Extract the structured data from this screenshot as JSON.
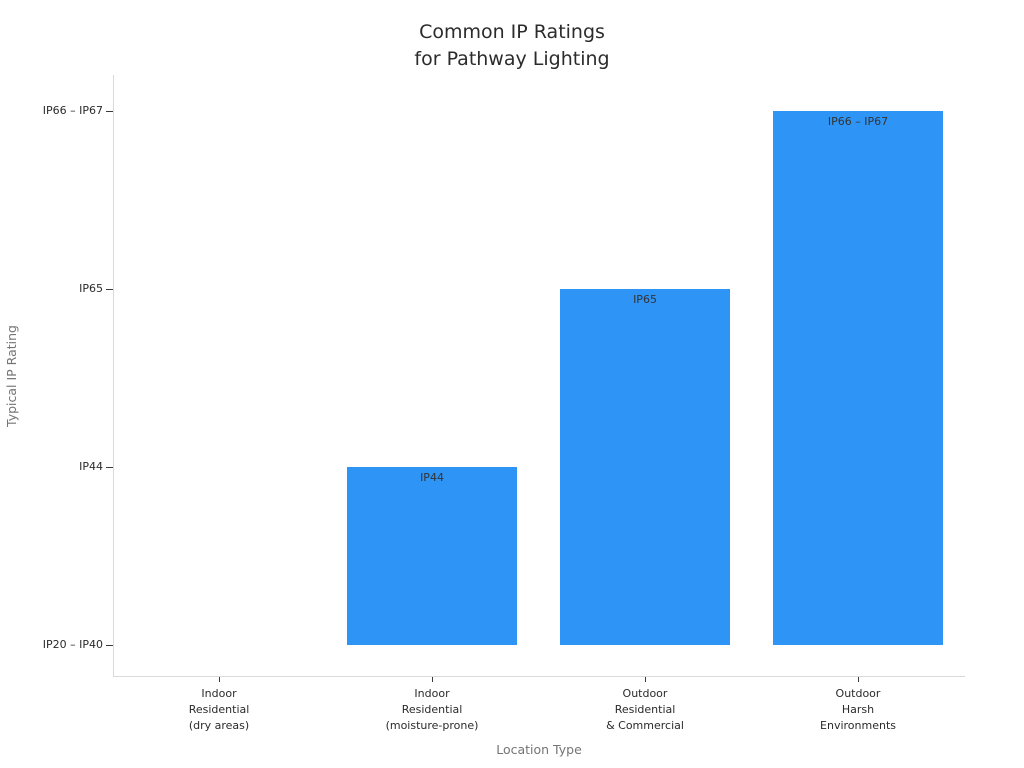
{
  "page": {
    "background": "#ffffff"
  },
  "chart_data": {
    "type": "bar",
    "title": "Common IP Ratings\nfor Pathway Lighting",
    "xlabel": "Location Type",
    "ylabel": "Typical IP Rating",
    "categories": [
      "Indoor\nResidential\n(dry areas)",
      "Indoor\nResidential\n(moisture-prone)",
      "Outdoor\nResidential\n& Commercial",
      "Outdoor\nHarsh\nEnvironments"
    ],
    "values": [
      0,
      1,
      2,
      3
    ],
    "bar_labels": [
      "",
      "IP44",
      "IP65",
      "IP66 – IP67"
    ],
    "ytick_values": [
      0,
      1,
      2,
      3
    ],
    "ytick_labels": [
      "IP20 – IP40",
      "IP44",
      "IP65",
      "IP66 – IP67"
    ],
    "ylim": [
      -0.18,
      3.2
    ],
    "bar_color": "#2E94F5",
    "text_color": "#2b2b2b",
    "axis_title_color": "#757575",
    "spine_color": "#d9d9d9",
    "grid": false,
    "legend": false
  }
}
